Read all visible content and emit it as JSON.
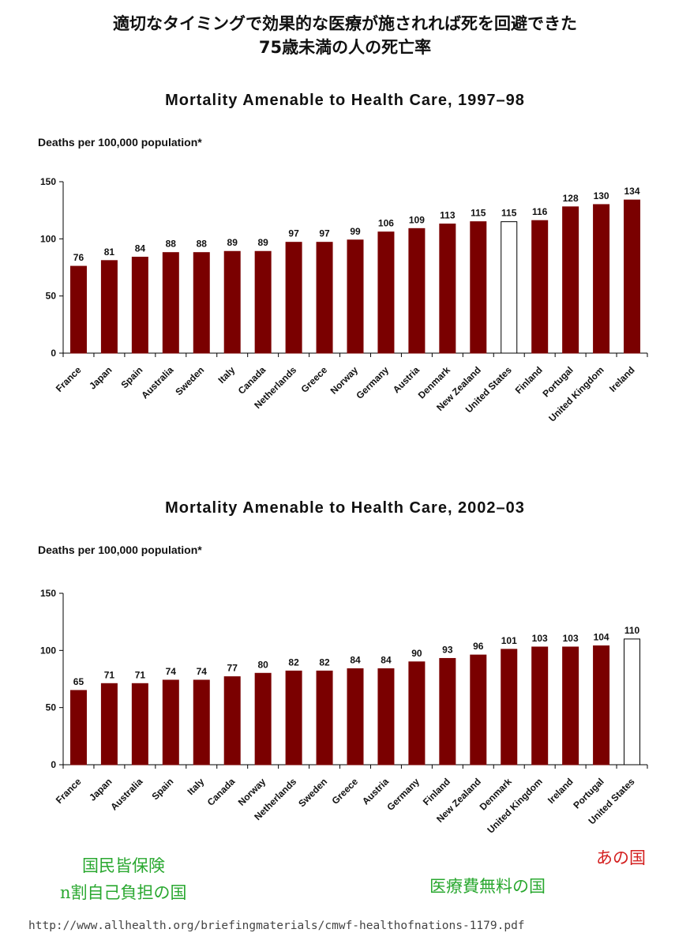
{
  "header": {
    "title_line1": "適切なタイミングで効果的な医療が施されれば死を回避できた",
    "title_line2": "75歳未満の人の死亡率"
  },
  "chart_data": [
    {
      "type": "bar",
      "title": "Mortality Amenable to Health Care, 1997–98",
      "ylabel": "Deaths per 100,000 population*",
      "xlabel": "",
      "ylim": [
        0,
        150
      ],
      "yticks": [
        0,
        50,
        100,
        150
      ],
      "categories": [
        "France",
        "Japan",
        "Spain",
        "Australia",
        "Sweden",
        "Italy",
        "Canada",
        "Netherlands",
        "Greece",
        "Norway",
        "Germany",
        "Austria",
        "Denmark",
        "New Zealand",
        "United States",
        "Finland",
        "Portugal",
        "United Kingdom",
        "Ireland"
      ],
      "values": [
        76,
        81,
        84,
        88,
        88,
        89,
        89,
        97,
        97,
        99,
        106,
        109,
        113,
        115,
        115,
        116,
        128,
        130,
        134
      ],
      "highlight": "United States",
      "bar_color": "#7a0000",
      "highlight_color": "#ffffff"
    },
    {
      "type": "bar",
      "title": "Mortality Amenable to Health Care, 2002–03",
      "ylabel": "Deaths per 100,000 population*",
      "xlabel": "",
      "ylim": [
        0,
        150
      ],
      "yticks": [
        0,
        50,
        100,
        150
      ],
      "categories": [
        "France",
        "Japan",
        "Australia",
        "Spain",
        "Italy",
        "Canada",
        "Norway",
        "Netherlands",
        "Sweden",
        "Greece",
        "Austria",
        "Germany",
        "Finland",
        "New Zealand",
        "Denmark",
        "United Kingdom",
        "Ireland",
        "Portugal",
        "United States"
      ],
      "values": [
        65,
        71,
        71,
        74,
        74,
        77,
        80,
        82,
        82,
        84,
        84,
        90,
        93,
        96,
        101,
        103,
        103,
        104,
        110
      ],
      "highlight": "United States",
      "bar_color": "#7a0000",
      "highlight_color": "#ffffff"
    }
  ],
  "annotations": {
    "left_line1": "国民皆保険",
    "left_line2": "n割自己負担の国",
    "middle": "医療費無料の国",
    "right": "あの国",
    "green_color": "#2aa830",
    "red_color": "#d42020"
  },
  "footer": {
    "source": "http://www.allhealth.org/briefingmaterials/cmwf-healthofnations-1179.pdf"
  }
}
